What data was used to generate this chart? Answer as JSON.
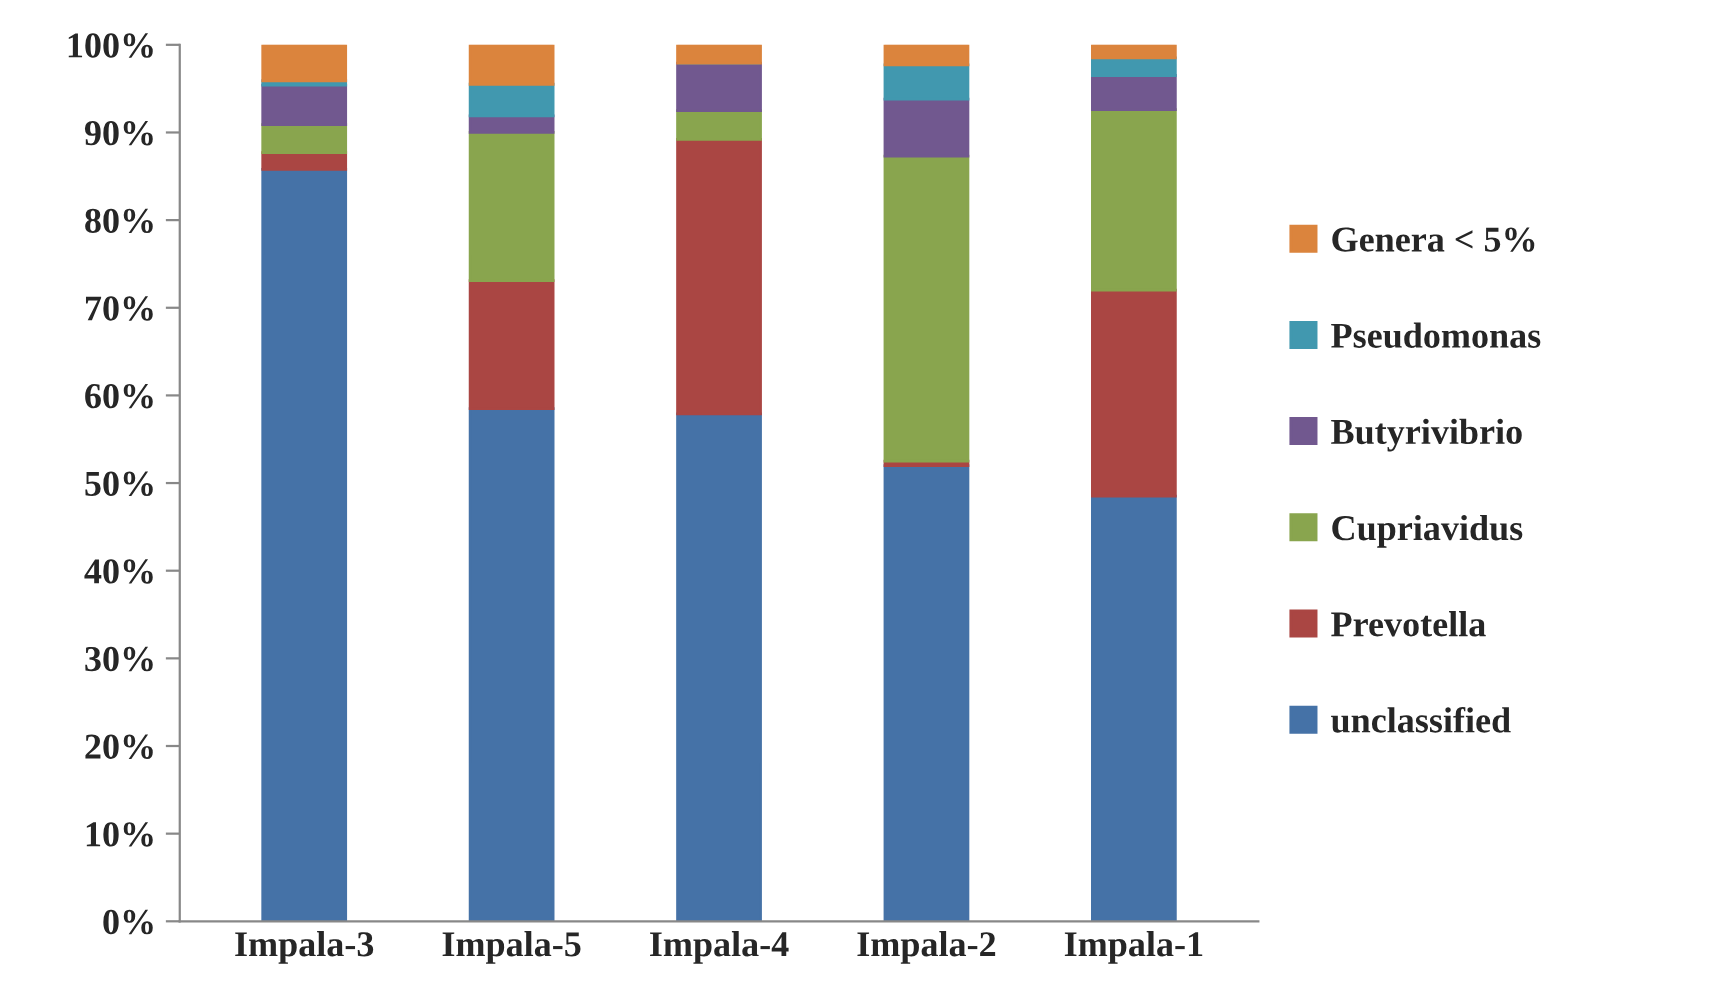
{
  "chart_data": {
    "type": "bar",
    "stacked": true,
    "categories": [
      "Impala-3",
      "Impala-5",
      "Impala-4",
      "Impala-2",
      "Impala-1"
    ],
    "series": [
      {
        "name": "unclassified",
        "color": "#4572a7",
        "values": [
          85.8,
          58.5,
          57.9,
          52.0,
          48.5
        ]
      },
      {
        "name": "Prevotella",
        "color": "#aa4643",
        "values": [
          1.9,
          14.6,
          31.3,
          0.5,
          23.5
        ]
      },
      {
        "name": "Cupriavidus",
        "color": "#89a54e",
        "values": [
          3.2,
          16.9,
          3.3,
          34.8,
          20.6
        ]
      },
      {
        "name": "Butyrivibrio",
        "color": "#71588f",
        "values": [
          4.5,
          1.9,
          5.4,
          6.5,
          3.9
        ]
      },
      {
        "name": "Pseudomonas",
        "color": "#4198af",
        "values": [
          0.5,
          3.6,
          0,
          3.9,
          2.0
        ]
      },
      {
        "name": "Genera < 5%",
        "color": "#db843d",
        "values": [
          4.1,
          4.5,
          2.1,
          2.3,
          1.5
        ]
      }
    ],
    "ylim": [
      0,
      100
    ],
    "yticks": [
      {
        "value": 0,
        "label": "0%"
      },
      {
        "value": 10,
        "label": "10%"
      },
      {
        "value": 20,
        "label": "20%"
      },
      {
        "value": 30,
        "label": "30%"
      },
      {
        "value": 40,
        "label": "40%"
      },
      {
        "value": 50,
        "label": "50%"
      },
      {
        "value": 60,
        "label": "60%"
      },
      {
        "value": 70,
        "label": "70%"
      },
      {
        "value": 80,
        "label": "80%"
      },
      {
        "value": 90,
        "label": "90%"
      },
      {
        "value": 100,
        "label": "100%"
      }
    ],
    "grid": false,
    "legend": "right"
  }
}
